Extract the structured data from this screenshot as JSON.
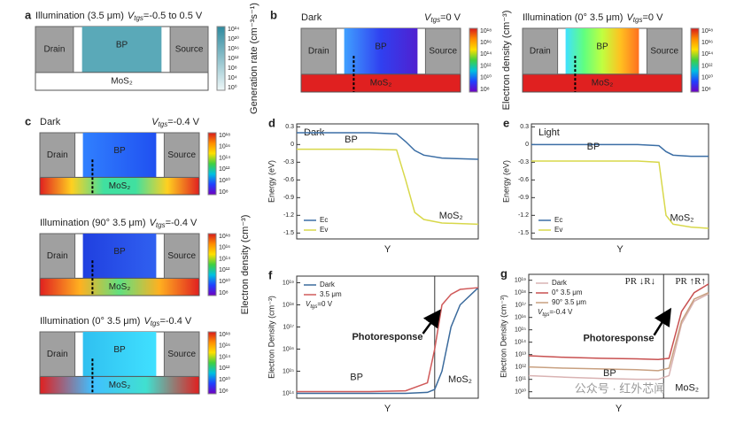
{
  "panels": [
    {
      "label": "a",
      "devices": [
        {
          "title": "Illumination (3.5 μm)",
          "gate_symbol": "V",
          "gate_sub": "tgs",
          "gate_value": "=-0.5 to 0.5 V",
          "drain": "Drain",
          "channel": "BP",
          "source": "Source",
          "substrate": "MoS₂",
          "channel_colors": [
            "#5aa9b8",
            "#5aa9b8"
          ],
          "substrate_colors": [
            "#ffffff",
            "#ffffff"
          ],
          "probe": false,
          "colorbar_colors": [
            "#2e8a9e",
            "#eef7f8"
          ],
          "colorbar_ticks": [
            "10²⁴",
            "10²⁰",
            "10¹⁶",
            "10¹²",
            "10⁸",
            "10⁴",
            "10⁰"
          ],
          "colorbar_title": "Generation rate (cm⁻³s⁻¹)"
        }
      ]
    },
    {
      "label": "b",
      "devices": [
        {
          "title": "Dark",
          "gate_symbol": "V",
          "gate_sub": "tgs",
          "gate_value": "=0 V",
          "drain": "Drain",
          "channel": "BP",
          "source": "Source",
          "substrate": "MoS₂",
          "channel_colors": [
            "#40a0ff",
            "#3040f0",
            "#5020d0"
          ],
          "substrate_colors": [
            "#e02020",
            "#e02020"
          ],
          "probe": true,
          "colorbar_colors": [
            "#d7191c",
            "#ff8c00",
            "#ffe000",
            "#40d040",
            "#00c0e0",
            "#2040ff",
            "#7000c0"
          ],
          "colorbar_ticks": [
            "10¹⁸",
            "10¹⁶",
            "10¹⁴",
            "10¹²",
            "10¹⁰",
            "10⁸"
          ],
          "colorbar_title": "Electron density (cm⁻³)"
        },
        {
          "title": "Illumination (0° 3.5 μm)",
          "gate_symbol": "V",
          "gate_sub": "tgs",
          "gate_value": "=0 V",
          "drain": "Drain",
          "channel": "BP",
          "source": "Source",
          "substrate": "MoS₂",
          "channel_colors": [
            "#40e0ff",
            "#60ff80",
            "#c0ff40",
            "#ffc020",
            "#ff7020"
          ],
          "substrate_colors": [
            "#e02020",
            "#e02020"
          ],
          "probe": true,
          "colorbar_colors": [
            "#d7191c",
            "#ff8c00",
            "#ffe000",
            "#40d040",
            "#00c0e0",
            "#2040ff",
            "#7000c0"
          ],
          "colorbar_ticks": [
            "10¹⁸",
            "10¹⁶",
            "10¹⁴",
            "10¹²",
            "10¹⁰",
            "10⁸"
          ]
        }
      ]
    },
    {
      "label": "c",
      "devices": [
        {
          "title": "Dark",
          "gate_symbol": "V",
          "gate_sub": "tgs",
          "gate_value": "=-0.4 V",
          "drain": "Drain",
          "channel": "BP",
          "source": "Source",
          "substrate": "MoS₂",
          "channel_colors": [
            "#3080ff",
            "#2050f0"
          ],
          "substrate_colors": [
            "#e02020",
            "#ffd020",
            "#40e0a0",
            "#40e0a0",
            "#ffd020",
            "#e02020"
          ],
          "probe": true,
          "colorbar_colors": [
            "#d7191c",
            "#ff8c00",
            "#ffe000",
            "#40d040",
            "#00c0e0",
            "#2040ff",
            "#7000c0"
          ],
          "colorbar_ticks": [
            "10¹⁸",
            "10¹⁶",
            "10¹⁴",
            "10¹²",
            "10¹⁰",
            "10⁸"
          ]
        },
        {
          "title": "Illumination (90° 3.5 μm)",
          "gate_symbol": "V",
          "gate_sub": "tgs",
          "gate_value": "=-0.4 V",
          "drain": "Drain",
          "channel": "BP",
          "source": "Source",
          "substrate": "MoS₂",
          "channel_colors": [
            "#2040e0",
            "#3060f0"
          ],
          "substrate_colors": [
            "#e02020",
            "#ffb020",
            "#60e080",
            "#ffb020",
            "#e02020"
          ],
          "probe": true,
          "colorbar_colors": [
            "#d7191c",
            "#ff8c00",
            "#ffe000",
            "#40d040",
            "#00c0e0",
            "#2040ff",
            "#7000c0"
          ],
          "colorbar_ticks": [
            "10¹⁸",
            "10¹⁶",
            "10¹⁴",
            "10¹²",
            "10¹⁰",
            "10⁸"
          ],
          "colorbar_title": "Electron density (cm⁻³)"
        },
        {
          "title": "Illumination (0° 3.5 μm)",
          "gate_symbol": "V",
          "gate_sub": "tgs",
          "gate_value": "=-0.4 V",
          "drain": "Drain",
          "channel": "BP",
          "source": "Source",
          "substrate": "MoS₂",
          "channel_colors": [
            "#30c0f0",
            "#40e0ff"
          ],
          "substrate_colors": [
            "#e02020",
            "#40c0ff",
            "#40e0d0",
            "#e02020"
          ],
          "probe": true,
          "colorbar_colors": [
            "#d7191c",
            "#ff8c00",
            "#ffe000",
            "#40d040",
            "#00c0e0",
            "#2040ff",
            "#7000c0"
          ],
          "colorbar_ticks": [
            "10¹⁸",
            "10¹⁶",
            "10¹⁴",
            "10¹²",
            "10¹⁰",
            "10⁸"
          ]
        }
      ]
    }
  ],
  "chart_data": [
    {
      "type": "line",
      "panel_label": "d",
      "title": "Dark",
      "xlabel": "Y",
      "ylabel": "Energy (eV)",
      "xlim": [
        0,
        1
      ],
      "ylim": [
        -1.6,
        0.35
      ],
      "yticks": [
        0.3,
        0,
        -0.3,
        -0.6,
        -0.9,
        -1.2,
        -1.5
      ],
      "log": false,
      "legend": "lower left",
      "x": [
        0,
        0.2,
        0.4,
        0.55,
        0.6,
        0.65,
        0.7,
        0.8,
        1
      ],
      "series": [
        {
          "name": "Ec",
          "color": "#3b6ea5",
          "values": [
            0.2,
            0.2,
            0.2,
            0.18,
            0.05,
            -0.1,
            -0.18,
            -0.23,
            -0.25
          ]
        },
        {
          "name": "Ev",
          "color": "#d8d84a",
          "values": [
            -0.08,
            -0.08,
            -0.08,
            -0.09,
            -0.6,
            -1.15,
            -1.27,
            -1.33,
            -1.35
          ]
        }
      ],
      "annotations": [
        "BP",
        "MoS₂"
      ]
    },
    {
      "type": "line",
      "panel_label": "e",
      "title": "Light",
      "xlabel": "Y",
      "ylabel": "Energy (eV)",
      "xlim": [
        0,
        1
      ],
      "ylim": [
        -1.6,
        0.35
      ],
      "yticks": [
        0.3,
        0,
        -0.3,
        -0.6,
        -0.9,
        -1.2,
        -1.5
      ],
      "log": false,
      "legend": "lower left",
      "x": [
        0,
        0.3,
        0.6,
        0.72,
        0.76,
        0.8,
        0.9,
        1
      ],
      "series": [
        {
          "name": "Ec",
          "color": "#3b6ea5",
          "values": [
            0,
            0,
            0,
            -0.02,
            -0.12,
            -0.18,
            -0.2,
            -0.2
          ]
        },
        {
          "name": "Ev",
          "color": "#d8d84a",
          "values": [
            -0.28,
            -0.28,
            -0.28,
            -0.3,
            -1.2,
            -1.35,
            -1.4,
            -1.42
          ]
        }
      ],
      "annotations": [
        "BP",
        "MoS₂"
      ]
    },
    {
      "type": "line",
      "panel_label": "f",
      "xlabel": "Y",
      "ylabel": "Electron Density (cm⁻³)",
      "xlim": [
        0,
        1
      ],
      "ylim": [
        60000000000000.0,
        2e+19
      ],
      "log": true,
      "legend": "upper left",
      "yticks": [
        {
          "value": 100000000000000.0,
          "label": "10¹⁴"
        },
        {
          "value": 1000000000000000.0,
          "label": "10¹⁵"
        },
        {
          "value": 1e+16,
          "label": "10¹⁶"
        },
        {
          "value": 1e+17,
          "label": "10¹⁷"
        },
        {
          "value": 1e+18,
          "label": "10¹⁸"
        },
        {
          "value": 1e+19,
          "label": "10¹⁹"
        }
      ],
      "x": [
        0,
        0.2,
        0.4,
        0.6,
        0.72,
        0.76,
        0.8,
        0.85,
        0.9,
        1
      ],
      "series": [
        {
          "name": "Dark",
          "color": "#3a6a9c",
          "values": [
            100000000000000.0,
            100000000000000.0,
            100000000000000.0,
            100000000000000.0,
            110000000000000.0,
            150000000000000.0,
            1000000000000000.0,
            1e+17,
            1e+18,
            6e+18
          ]
        },
        {
          "name": "3.5 μm",
          "color": "#d05a5a",
          "values": [
            120000000000000.0,
            120000000000000.0,
            120000000000000.0,
            130000000000000.0,
            300000000000000.0,
            1e+16,
            1e+18,
            3e+18,
            5e+18,
            6e+18
          ]
        }
      ],
      "vlines": [
        0.76
      ],
      "legend_note": {
        "symbol": "V",
        "sub": "tgs",
        "value": "=0 V"
      },
      "annotations": [
        "Photoresponse",
        "BP",
        "MoS₂"
      ]
    },
    {
      "type": "line",
      "panel_label": "g",
      "xlabel": "Y",
      "ylabel": "Electron Density (cm⁻³)",
      "xlim": [
        0,
        1
      ],
      "ylim": [
        3000000000.0,
        3e+19
      ],
      "log": true,
      "legend": "upper left",
      "yticks": [
        {
          "value": 10000000000.0,
          "label": "10¹⁰"
        },
        {
          "value": 100000000000.0,
          "label": "10¹¹"
        },
        {
          "value": 1000000000000.0,
          "label": "10¹²"
        },
        {
          "value": 10000000000000.0,
          "label": "10¹³"
        },
        {
          "value": 100000000000000.0,
          "label": "10¹⁴"
        },
        {
          "value": 1000000000000000.0,
          "label": "10¹⁵"
        },
        {
          "value": 1e+16,
          "label": "10¹⁶"
        },
        {
          "value": 1e+17,
          "label": "10¹⁷"
        },
        {
          "value": 1e+18,
          "label": "10¹⁸"
        },
        {
          "value": 1e+19,
          "label": "10¹⁹"
        }
      ],
      "x": [
        0,
        0.2,
        0.4,
        0.6,
        0.72,
        0.78,
        0.85,
        0.92,
        1
      ],
      "series": [
        {
          "name": "Dark",
          "color": "#d9b3b3",
          "values": [
            200000000000.0,
            150000000000.0,
            120000000000.0,
            100000000000.0,
            100000000000.0,
            200000000000.0,
            3000000000000000.0,
            2e+17,
            8e+17
          ]
        },
        {
          "name": "0° 3.5 μm",
          "color": "#c85050",
          "values": [
            8000000000000.0,
            6000000000000.0,
            5000000000000.0,
            4500000000000.0,
            4000000000000.0,
            5000000000000.0,
            3e+16,
            1e+18,
            5e+18
          ]
        },
        {
          "name": "90° 3.5 μm",
          "color": "#c8a080",
          "values": [
            1000000000000.0,
            800000000000.0,
            700000000000.0,
            600000000000.0,
            500000000000.0,
            800000000000.0,
            5000000000000000.0,
            3e+17,
            1e+18
          ]
        }
      ],
      "vlines": [
        0.75
      ],
      "legend_note": {
        "symbol": "V",
        "sub": "tgs",
        "value": "=-0.4 V"
      },
      "annotations": [
        "PR ↓R↓",
        "PR ↑R↑",
        "Photoresponse",
        "BP",
        "MoS₂"
      ]
    }
  ],
  "watermark": "公众号 · 红外芯闻"
}
